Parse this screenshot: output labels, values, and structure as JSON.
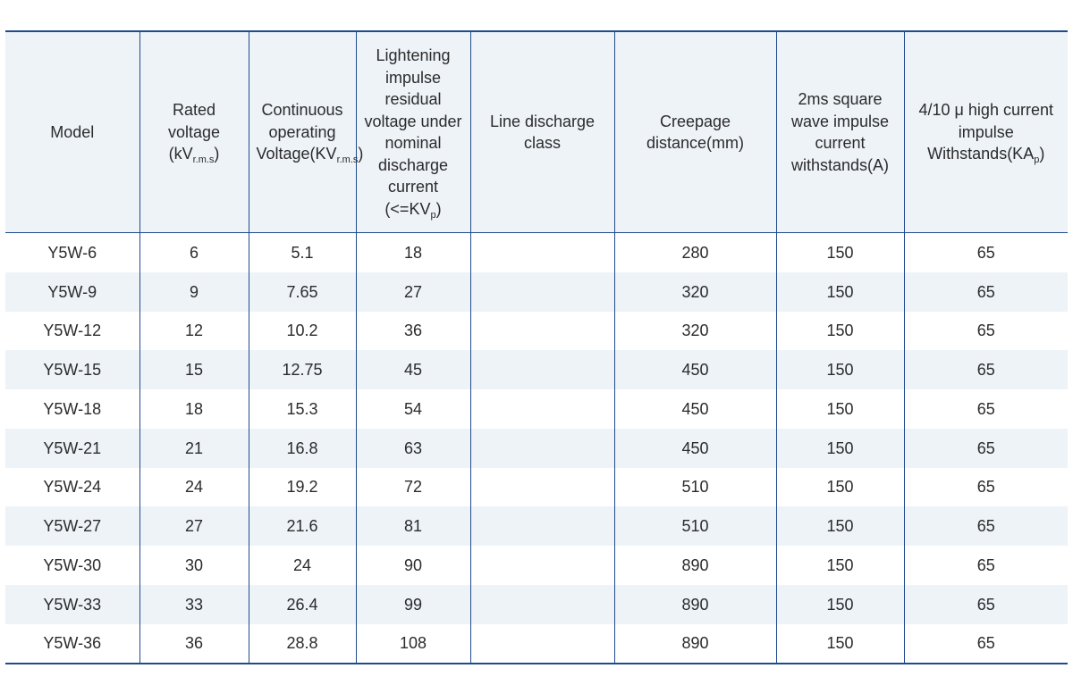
{
  "table": {
    "headers": {
      "model": "Model",
      "rated_voltage": {
        "main": "Rated voltage (kV",
        "sub": "r.m.s",
        "tail": ")"
      },
      "continuous_voltage": {
        "main": "Continuous operating Voltage(KV",
        "sub": "r.m.s",
        "tail": ")"
      },
      "residual_voltage": {
        "main": "Lightening impulse residual voltage under nominal discharge current (<=KV",
        "sub": "p",
        "tail": ")"
      },
      "line_discharge_class": "Line discharge class",
      "creepage_distance": "Creepage distance(mm)",
      "square_wave_current": "2ms square wave impulse current withstands(A)",
      "high_current": {
        "main": "4/10 μ high current impulse Withstands(KA",
        "sub": "p",
        "tail": ")"
      }
    },
    "rows": [
      {
        "model": "Y5W-6",
        "rated": "6",
        "continuous": "5.1",
        "residual": "18",
        "line_class": "",
        "creepage": "280",
        "square_wave": "150",
        "high_current": "65"
      },
      {
        "model": "Y5W-9",
        "rated": "9",
        "continuous": "7.65",
        "residual": "27",
        "line_class": "",
        "creepage": "320",
        "square_wave": "150",
        "high_current": "65"
      },
      {
        "model": "Y5W-12",
        "rated": "12",
        "continuous": "10.2",
        "residual": "36",
        "line_class": "",
        "creepage": "320",
        "square_wave": "150",
        "high_current": "65"
      },
      {
        "model": "Y5W-15",
        "rated": "15",
        "continuous": "12.75",
        "residual": "45",
        "line_class": "",
        "creepage": "450",
        "square_wave": "150",
        "high_current": "65"
      },
      {
        "model": "Y5W-18",
        "rated": "18",
        "continuous": "15.3",
        "residual": "54",
        "line_class": "",
        "creepage": "450",
        "square_wave": "150",
        "high_current": "65"
      },
      {
        "model": "Y5W-21",
        "rated": "21",
        "continuous": "16.8",
        "residual": "63",
        "line_class": "",
        "creepage": "450",
        "square_wave": "150",
        "high_current": "65"
      },
      {
        "model": "Y5W-24",
        "rated": "24",
        "continuous": "19.2",
        "residual": "72",
        "line_class": "",
        "creepage": "510",
        "square_wave": "150",
        "high_current": "65"
      },
      {
        "model": "Y5W-27",
        "rated": "27",
        "continuous": "21.6",
        "residual": "81",
        "line_class": "",
        "creepage": "510",
        "square_wave": "150",
        "high_current": "65"
      },
      {
        "model": "Y5W-30",
        "rated": "30",
        "continuous": "24",
        "residual": "90",
        "line_class": "",
        "creepage": "890",
        "square_wave": "150",
        "high_current": "65"
      },
      {
        "model": "Y5W-33",
        "rated": "33",
        "continuous": "26.4",
        "residual": "99",
        "line_class": "",
        "creepage": "890",
        "square_wave": "150",
        "high_current": "65"
      },
      {
        "model": "Y5W-36",
        "rated": "36",
        "continuous": "28.8",
        "residual": "108",
        "line_class": "",
        "creepage": "890",
        "square_wave": "150",
        "high_current": "65"
      }
    ]
  },
  "colors": {
    "border": "#1e4b8c",
    "stripe": "#eef3f8",
    "text": "#2b2b2b"
  }
}
